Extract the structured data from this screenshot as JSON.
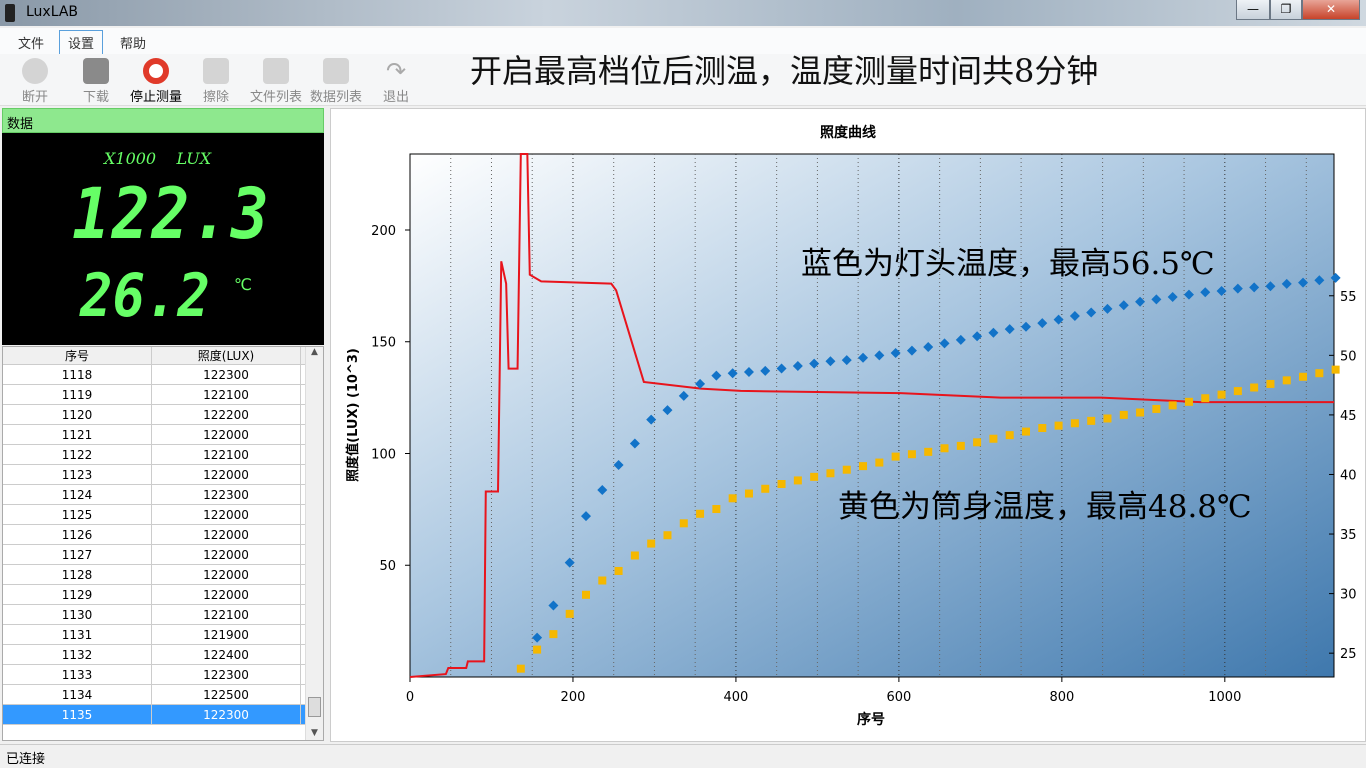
{
  "window": {
    "title": "LuxLAB",
    "minimize": "—",
    "maximize": "❐",
    "close": "✕"
  },
  "menu": [
    "文件",
    "设置",
    "帮助"
  ],
  "toolbar": [
    {
      "label": "断开",
      "icon": "bulb-icon"
    },
    {
      "label": "下载",
      "icon": "address-book-icon"
    },
    {
      "label": "停止测量",
      "icon": "lifebuoy-icon"
    },
    {
      "label": "擦除",
      "icon": "recycle-bin-icon"
    },
    {
      "label": "文件列表",
      "icon": "folder-add-icon"
    },
    {
      "label": "数据列表",
      "icon": "table-icon"
    },
    {
      "label": "退出",
      "icon": "redo-icon"
    }
  ],
  "banner": "开启最高档位后测温，温度测量时间共8分钟",
  "panel": {
    "title": "数据",
    "unit_line": "X1000    LUX",
    "lux": "122.3",
    "temp": "26.2",
    "temp_unit": "℃"
  },
  "table": {
    "headers": [
      "序号",
      "照度(LUX)"
    ],
    "rows": [
      [
        "1118",
        "122300"
      ],
      [
        "1119",
        "122100"
      ],
      [
        "1120",
        "122200"
      ],
      [
        "1121",
        "122000"
      ],
      [
        "1122",
        "122100"
      ],
      [
        "1123",
        "122000"
      ],
      [
        "1124",
        "122300"
      ],
      [
        "1125",
        "122000"
      ],
      [
        "1126",
        "122000"
      ],
      [
        "1127",
        "122000"
      ],
      [
        "1128",
        "122000"
      ],
      [
        "1129",
        "122000"
      ],
      [
        "1130",
        "122100"
      ],
      [
        "1131",
        "121900"
      ],
      [
        "1132",
        "122400"
      ],
      [
        "1133",
        "122300"
      ],
      [
        "1134",
        "122500"
      ],
      [
        "1135",
        "122300"
      ]
    ],
    "selected": "1135"
  },
  "status": "已连接",
  "colors": {
    "lux_line": "#e8141c",
    "head_temp": "#1273c8",
    "body_temp": "#f5b800",
    "lcd": "#66ff33"
  },
  "chart_data": {
    "type": "line",
    "title": "照度曲线",
    "xlabel": "序号",
    "ylabel": "照度值(LUX)  (10^3)",
    "xlim": [
      0,
      1134
    ],
    "ylim": [
      0,
      234
    ],
    "y2lim": [
      23,
      66.9
    ],
    "xticks": [
      0,
      200,
      400,
      600,
      800,
      1000
    ],
    "yticks": [
      50,
      100,
      150,
      200
    ],
    "y2ticks": [
      25,
      30,
      35,
      40,
      45,
      50,
      55
    ],
    "grid": "vertical dotted",
    "annotations": [
      "蓝色为灯头温度，最高56.5℃",
      "黄色为筒身温度，最高48.8℃"
    ],
    "lux": [
      [
        0,
        0
      ],
      [
        44,
        1.3
      ],
      [
        47,
        4
      ],
      [
        69,
        4
      ],
      [
        71,
        7
      ],
      [
        91,
        7
      ],
      [
        93,
        83
      ],
      [
        108,
        83
      ],
      [
        112,
        186
      ],
      [
        118,
        176
      ],
      [
        121,
        138
      ],
      [
        132,
        138
      ],
      [
        136,
        234
      ],
      [
        144,
        234
      ],
      [
        147,
        180
      ],
      [
        161,
        177
      ],
      [
        247,
        176
      ],
      [
        253,
        173
      ],
      [
        287,
        132
      ],
      [
        357,
        129
      ],
      [
        406,
        128
      ],
      [
        602,
        127
      ],
      [
        725,
        125
      ],
      [
        848,
        125
      ],
      [
        970,
        123
      ],
      [
        1134,
        123
      ]
    ],
    "head_temp": {
      "x_start": 156,
      "x_step": 20,
      "values": [
        26.3,
        29.0,
        32.6,
        36.5,
        38.7,
        40.8,
        42.6,
        44.6,
        45.4,
        46.6,
        47.6,
        48.3,
        48.5,
        48.6,
        48.7,
        48.9,
        49.1,
        49.3,
        49.5,
        49.6,
        49.8,
        50.0,
        50.2,
        50.4,
        50.7,
        51.0,
        51.3,
        51.6,
        51.9,
        52.2,
        52.4,
        52.7,
        53.0,
        53.3,
        53.6,
        53.9,
        54.2,
        54.5,
        54.7,
        54.9,
        55.1,
        55.3,
        55.4,
        55.6,
        55.7,
        55.8,
        56.0,
        56.1,
        56.3,
        56.5
      ]
    },
    "body_temp": {
      "x_start": 136,
      "x_step": 20,
      "values": [
        23.7,
        25.3,
        26.6,
        28.3,
        29.9,
        31.1,
        31.9,
        33.2,
        34.2,
        34.9,
        35.9,
        36.7,
        37.1,
        38.0,
        38.4,
        38.8,
        39.2,
        39.5,
        39.8,
        40.1,
        40.4,
        40.7,
        41.0,
        41.5,
        41.7,
        41.9,
        42.2,
        42.4,
        42.7,
        43.0,
        43.3,
        43.6,
        43.9,
        44.1,
        44.3,
        44.5,
        44.7,
        45.0,
        45.2,
        45.5,
        45.8,
        46.1,
        46.4,
        46.7,
        47.0,
        47.3,
        47.6,
        47.9,
        48.2,
        48.5,
        48.8
      ]
    }
  }
}
